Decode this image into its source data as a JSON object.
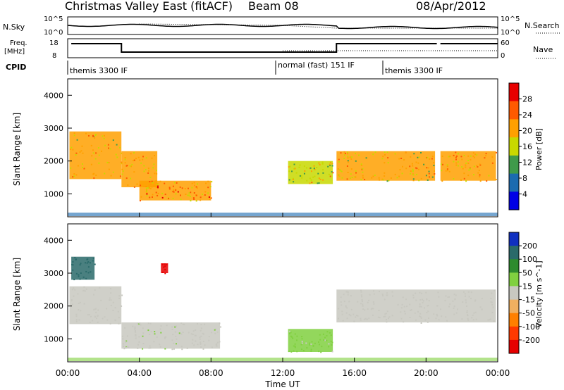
{
  "header": {
    "station": "Christmas Valley East (fitACF)",
    "beam": "Beam 08",
    "date": "08/Apr/2012"
  },
  "top_panels": {
    "nsky_label": "N.Sky",
    "nsky_ticks": [
      "10^5",
      "10^0"
    ],
    "nsearch_label": "N.Search",
    "freq_label": "Freq.",
    "freq_unit": "[MHz]",
    "freq_ticks": [
      "18",
      "8"
    ],
    "nave_label": "Nave",
    "nave_ticks": [
      "60",
      "0"
    ],
    "cpid_label": "CPID",
    "cpid_segments": [
      {
        "start": "00:00",
        "label": "themis 3300 IF"
      },
      {
        "start": "12:00",
        "label": "normal (fast) 151 IF"
      },
      {
        "start": "18:00",
        "label": "themis 3300 IF"
      }
    ]
  },
  "x_axis": {
    "label": "Time UT",
    "ticks": [
      "00:00",
      "04:00",
      "08:00",
      "12:00",
      "16:00",
      "20:00",
      "00:00"
    ]
  },
  "power_colorbar": {
    "label": "Power [dB]",
    "ticks": [
      "28",
      "24",
      "20",
      "16",
      "12",
      "8",
      "4"
    ],
    "colors": [
      "#e80000",
      "#ff5a00",
      "#ffa000",
      "#c8d800",
      "#3f9a4a",
      "#1b6bb0",
      "#0000e6"
    ]
  },
  "velocity_colorbar": {
    "label": "Velocity [m s^-1]",
    "ticks": [
      "200",
      "100",
      "50",
      "15",
      "-15",
      "-50",
      "-100",
      "-200"
    ],
    "colors": [
      "#1030c0",
      "#2a6a6a",
      "#2e8b2e",
      "#80d040",
      "#c8c8c0",
      "#f0b060",
      "#ff8000",
      "#ff3a00",
      "#e60000"
    ]
  },
  "chart_data": [
    {
      "type": "heatmap",
      "title": "Power",
      "xlabel": "Time UT",
      "ylabel": "Slant Range [km]",
      "xlim": [
        "00:00",
        "24:00"
      ],
      "ylim": [
        300,
        4500
      ],
      "yticks": [
        1000,
        2000,
        3000,
        4000
      ],
      "colorbar": "Power [dB]",
      "color_range": [
        0,
        30
      ],
      "regions": [
        {
          "t0": 0.1,
          "t1": 3.0,
          "r0": 1450,
          "r1": 2900,
          "value": 18
        },
        {
          "t0": 3.0,
          "t1": 5.0,
          "r0": 1200,
          "r1": 2300,
          "value": 20
        },
        {
          "t0": 4.0,
          "t1": 8.0,
          "r0": 800,
          "r1": 1400,
          "value": 22
        },
        {
          "t0": 12.3,
          "t1": 14.8,
          "r0": 1300,
          "r1": 2000,
          "value": 16
        },
        {
          "t0": 15.0,
          "t1": 20.5,
          "r0": 1400,
          "r1": 2300,
          "value": 18
        },
        {
          "t0": 20.8,
          "t1": 23.9,
          "r0": 1400,
          "r1": 2300,
          "value": 20
        }
      ]
    },
    {
      "type": "heatmap",
      "title": "Velocity",
      "xlabel": "Time UT",
      "ylabel": "Slant Range [km]",
      "xlim": [
        "00:00",
        "24:00"
      ],
      "ylim": [
        300,
        4500
      ],
      "yticks": [
        1000,
        2000,
        3000,
        4000
      ],
      "colorbar": "Velocity [m s^-1]",
      "color_range": [
        -200,
        200
      ],
      "regions": [
        {
          "t0": 0.1,
          "t1": 3.0,
          "r0": 1450,
          "r1": 2600,
          "value": 0
        },
        {
          "t0": 0.2,
          "t1": 1.5,
          "r0": 2800,
          "r1": 3500,
          "value": 150
        },
        {
          "t0": 5.2,
          "t1": 5.6,
          "r0": 3000,
          "r1": 3300,
          "value": -200
        },
        {
          "t0": 3.0,
          "t1": 8.5,
          "r0": 700,
          "r1": 1500,
          "value": 20
        },
        {
          "t0": 12.3,
          "t1": 14.8,
          "r0": 600,
          "r1": 1300,
          "value": 30
        },
        {
          "t0": 15.0,
          "t1": 23.9,
          "r0": 1500,
          "r1": 2500,
          "value": 0
        }
      ]
    }
  ]
}
